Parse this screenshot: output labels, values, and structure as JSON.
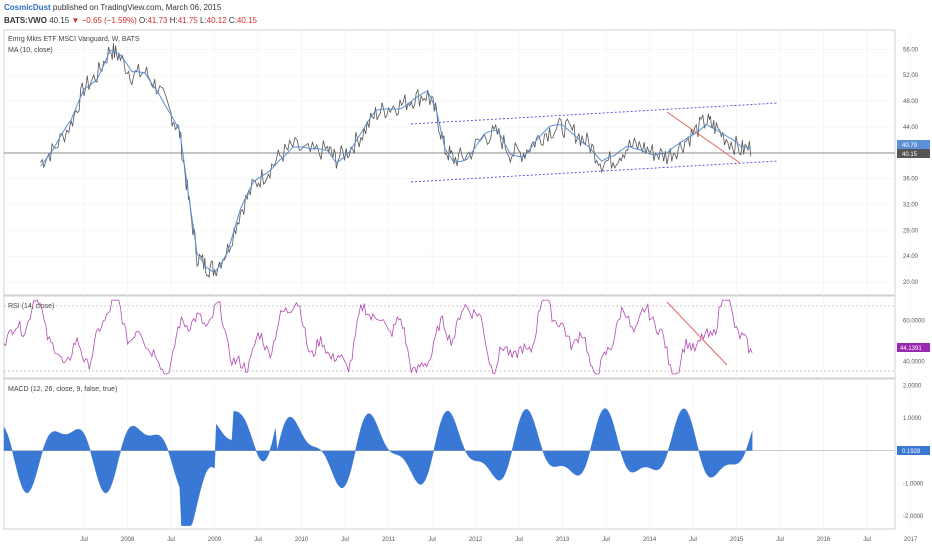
{
  "header": {
    "author": "CosmicDust",
    "published": "published on TradingView.com, March 06, 2015",
    "symbol": "BATS:VWO",
    "last": "40.15",
    "change": "▼ −0.65 (−1.59%)",
    "ohlc": [
      {
        "k": "O:",
        "v": "41.73"
      },
      {
        "k": "H:",
        "v": "41.75"
      },
      {
        "k": "L:",
        "v": "40.12"
      },
      {
        "k": "C:",
        "v": "40.15"
      }
    ]
  },
  "colors": {
    "price": "#555555",
    "ma": "#5b8fd6",
    "channel": "#4a4ad6",
    "trend": "#e06666",
    "rsi": "#b44ab4",
    "macd": "#3a78d6"
  },
  "chart_data": [
    {
      "type": "line",
      "pane": "price",
      "legend": [
        "Emrg Mkts ETF MSCI Vanguard, W, BATS",
        "MA (10, close)"
      ],
      "ylim": [
        18,
        59
      ],
      "yticks": [
        "56.00",
        "52.00",
        "48.00",
        "44.00",
        "40.00",
        "36.00",
        "32.00",
        "28.00",
        "24.00",
        "20.00"
      ],
      "markers": [
        {
          "label": "40.79"
        },
        {
          "label": "40.15"
        }
      ],
      "series": [
        {
          "points": [
            [
              2007.0,
              38.5
            ],
            [
              2007.15,
              40.5
            ],
            [
              2007.35,
              44.5
            ],
            [
              2007.5,
              50
            ],
            [
              2007.65,
              52
            ],
            [
              2007.8,
              56
            ],
            [
              2007.9,
              55
            ],
            [
              2008.05,
              52
            ],
            [
              2008.2,
              52.5
            ],
            [
              2008.35,
              50
            ],
            [
              2008.5,
              46
            ],
            [
              2008.6,
              43
            ],
            [
              2008.7,
              33
            ],
            [
              2008.8,
              24
            ],
            [
              2008.9,
              22.5
            ],
            [
              2009.0,
              22
            ],
            [
              2009.15,
              25
            ],
            [
              2009.3,
              31
            ],
            [
              2009.45,
              35
            ],
            [
              2009.6,
              37
            ],
            [
              2009.75,
              39.5
            ],
            [
              2009.9,
              41
            ],
            [
              2010.1,
              40
            ],
            [
              2010.3,
              40.5
            ],
            [
              2010.4,
              39
            ],
            [
              2010.55,
              40.5
            ],
            [
              2010.7,
              43
            ],
            [
              2010.85,
              46
            ],
            [
              2011.0,
              47
            ],
            [
              2011.15,
              47.5
            ],
            [
              2011.3,
              48.5
            ],
            [
              2011.45,
              49
            ],
            [
              2011.55,
              46
            ],
            [
              2011.65,
              40.5
            ],
            [
              2011.75,
              39
            ],
            [
              2011.9,
              39.5
            ],
            [
              2012.1,
              42.5
            ],
            [
              2012.25,
              43
            ],
            [
              2012.4,
              40
            ],
            [
              2012.55,
              40
            ],
            [
              2012.7,
              42
            ],
            [
              2012.85,
              43.5
            ],
            [
              2013.0,
              44
            ],
            [
              2013.15,
              43
            ],
            [
              2013.3,
              41.5
            ],
            [
              2013.45,
              38.5
            ],
            [
              2013.6,
              39
            ],
            [
              2013.75,
              41
            ],
            [
              2013.9,
              41
            ],
            [
              2014.05,
              40
            ],
            [
              2014.2,
              39.5
            ],
            [
              2014.35,
              41
            ],
            [
              2014.5,
              43
            ],
            [
              2014.65,
              45
            ],
            [
              2014.75,
              44
            ],
            [
              2014.9,
              42
            ],
            [
              2015.05,
              40.5
            ],
            [
              2015.18,
              40.79
            ]
          ]
        }
      ]
    },
    {
      "type": "line",
      "pane": "rsi",
      "legend": [
        "RSI (14, close)"
      ],
      "ylim": [
        32,
        72
      ],
      "yticks": [
        "60.0000",
        "40.0000"
      ],
      "markers": [
        {
          "label": "44.1391"
        }
      ]
    },
    {
      "type": "area",
      "pane": "macd",
      "legend": [
        "MACD (12, 26, close, 9, false, true)"
      ],
      "ylim": [
        -2.4,
        2.2
      ],
      "yticks": [
        "2.0000",
        "1.0000",
        "-1.0000",
        "-2.0000"
      ],
      "markers": [
        {
          "label": "0.1928"
        }
      ]
    }
  ],
  "x_axis": {
    "ticks": [
      {
        "t": 2007.5,
        "label": "Jul"
      },
      {
        "t": 2008.0,
        "label": "2008"
      },
      {
        "t": 2008.5,
        "label": "Jul"
      },
      {
        "t": 2009.0,
        "label": "2009"
      },
      {
        "t": 2009.5,
        "label": "Jul"
      },
      {
        "t": 2010.0,
        "label": "2010"
      },
      {
        "t": 2010.5,
        "label": "Jul"
      },
      {
        "t": 2011.0,
        "label": "2011"
      },
      {
        "t": 2011.5,
        "label": "Jul"
      },
      {
        "t": 2012.0,
        "label": "2012"
      },
      {
        "t": 2012.5,
        "label": "Jul"
      },
      {
        "t": 2013.0,
        "label": "2013"
      },
      {
        "t": 2013.5,
        "label": "Jul"
      },
      {
        "t": 2014.0,
        "label": "2014"
      },
      {
        "t": 2014.5,
        "label": "Jul"
      },
      {
        "t": 2015.0,
        "label": "2015"
      },
      {
        "t": 2015.5,
        "label": "Jul"
      },
      {
        "t": 2016.0,
        "label": "2016"
      },
      {
        "t": 2016.5,
        "label": "Jul"
      },
      {
        "t": 2017.0,
        "label": "2017"
      }
    ]
  }
}
